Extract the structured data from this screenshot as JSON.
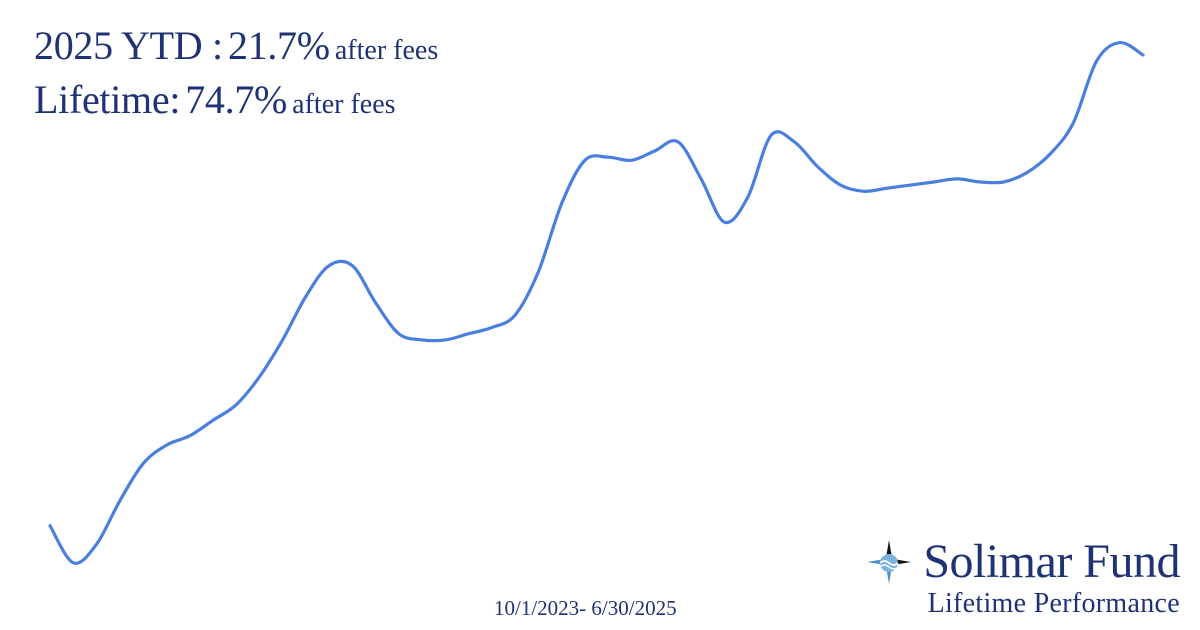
{
  "headline": {
    "ytd_label": "2025 YTD :",
    "ytd_value": "21.7%",
    "ytd_suffix": "after fees",
    "lifetime_label": "Lifetime:",
    "lifetime_value": "74.7%",
    "lifetime_suffix": "after fees"
  },
  "date_range": "10/1/2023- 6/30/2025",
  "brand": {
    "name": "Solimar Fund",
    "tagline": "Lifetime Performance",
    "logo_icon": "compass-icon"
  },
  "colors": {
    "text": "#1f3276",
    "line": "#4a7fe0"
  },
  "chart_data": {
    "type": "line",
    "title": "",
    "xlabel": "",
    "ylabel": "",
    "grid": false,
    "legend": "none",
    "ylim": [
      -8,
      80
    ],
    "x_start": "2023-10-01",
    "x_end": "2025-06-30",
    "series": [
      {
        "values": [
          4,
          -2,
          1,
          8,
          14,
          17,
          18.5,
          21,
          23.5,
          28,
          34,
          41,
          46,
          46,
          40,
          35,
          34,
          34,
          35,
          36,
          38,
          45,
          56,
          63,
          63.5,
          63,
          64.5,
          66,
          60,
          53,
          57,
          67,
          66,
          62,
          59,
          58,
          58.5,
          59,
          59.5,
          60,
          59.5,
          59.5,
          61,
          64,
          69,
          79,
          82,
          80
        ]
      }
    ]
  }
}
